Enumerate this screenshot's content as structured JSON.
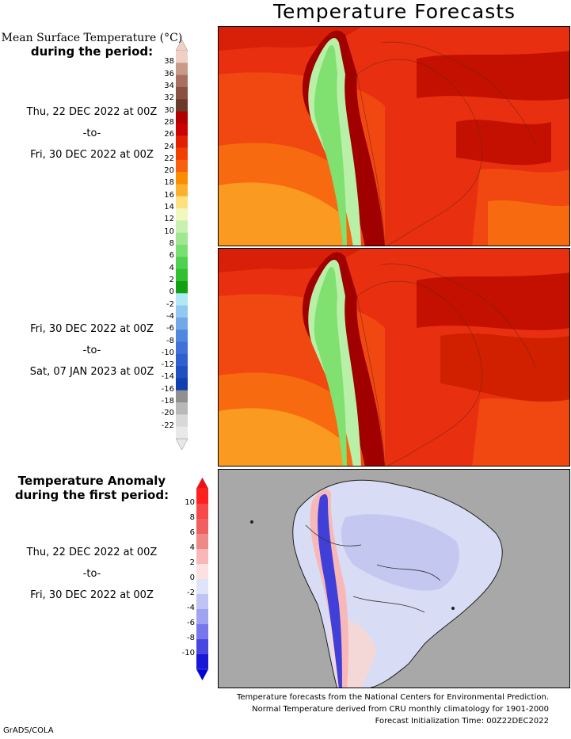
{
  "title": "Temperature Forecasts",
  "legend1": {
    "heading_line1": "Mean Surface Temperature (°C)",
    "heading_line2": "during the period:"
  },
  "period1": {
    "start": "Thu, 22 DEC 2022 at 00Z",
    "sep": "-to-",
    "end": "Fri, 30 DEC 2022 at 00Z"
  },
  "period2": {
    "start": "Fri, 30 DEC 2022 at 00Z",
    "sep": "-to-",
    "end": "Sat, 07 JAN 2023 at 00Z"
  },
  "legend2": {
    "heading_line1": "Temperature Anomaly",
    "heading_line2": "during the first period:"
  },
  "period3": {
    "start": "Thu, 22 DEC 2022 at 00Z",
    "sep": "-to-",
    "end": "Fri, 30 DEC 2022 at 00Z"
  },
  "temp_scale": {
    "labels": [
      "38",
      "36",
      "34",
      "32",
      "30",
      "28",
      "26",
      "24",
      "22",
      "20",
      "18",
      "16",
      "14",
      "12",
      "10",
      "8",
      "6",
      "4",
      "2",
      "0",
      "-2",
      "-4",
      "-6",
      "-8",
      "-10",
      "-12",
      "-14",
      "-16",
      "-18",
      "-20",
      "-22"
    ],
    "colors": [
      "#f0d0c4",
      "#c89a8a",
      "#a87060",
      "#8a5040",
      "#6a3a2a",
      "#b00000",
      "#cc0000",
      "#e02000",
      "#f04000",
      "#f86010",
      "#fb8c00",
      "#fcb030",
      "#fde080",
      "#f0f8c0",
      "#c8f0b0",
      "#a0e890",
      "#78e070",
      "#50d050",
      "#30c030",
      "#10a010",
      "#b0e8f8",
      "#90c8f0",
      "#70a8e8",
      "#5088e0",
      "#4070d8",
      "#3060d0",
      "#2050c0",
      "#1040b0",
      "#909090",
      "#b8b8b8",
      "#d8d8d8",
      "#e8e8e8"
    ]
  },
  "anom_scale": {
    "labels": [
      "10",
      "8",
      "6",
      "4",
      "2",
      "0",
      "-2",
      "-4",
      "-6",
      "-8",
      "-10"
    ],
    "colors": [
      "#ff2020",
      "#f84848",
      "#f06060",
      "#f08888",
      "#f8b8b8",
      "#fde0e0",
      "#e0e4f8",
      "#c0c4f4",
      "#a0a4f0",
      "#7878ec",
      "#4848e0",
      "#1818d8"
    ],
    "top_arrow": "#f01010",
    "bottom_arrow": "#0000e0"
  },
  "colors": {
    "ocean_warm": "#e83010",
    "ocean_hot": "#c41000",
    "ocean_orange": "#f86a10",
    "ocean_amber": "#fb9a20",
    "andes_green": "#b8f0a8",
    "anomaly_bg": "#a8a8a8",
    "anomaly_land": "#d8dcf4"
  },
  "footer": {
    "line1": "Temperature forecasts from the National Centers for Environmental Prediction.",
    "line2": "Normal Temperature derived from CRU monthly climatology for 1901-2000",
    "line3": "Forecast Initialization Time: 00Z22DEC2022"
  },
  "credit": "GrADS/COLA"
}
